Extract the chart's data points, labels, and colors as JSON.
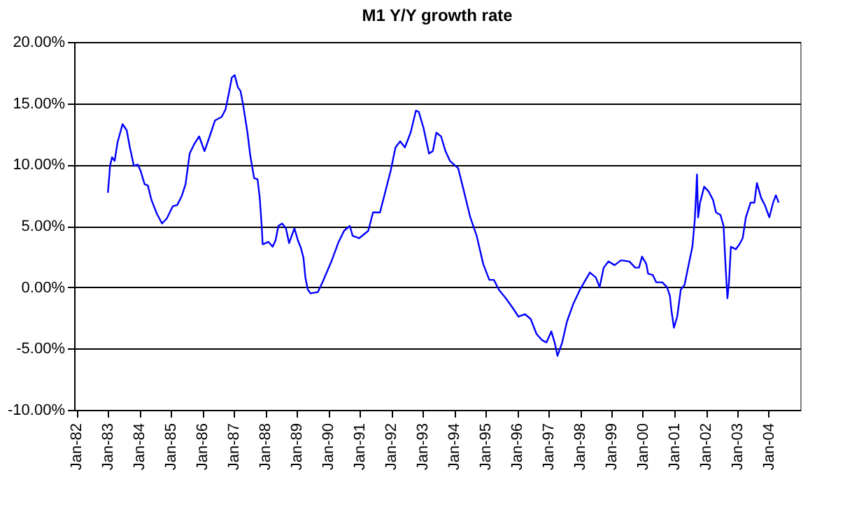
{
  "chart_data": {
    "type": "line",
    "title": "M1  Y/Y growth rate",
    "xlim": [
      "1981-12-05",
      "2005-01-01"
    ],
    "xticks": [
      {
        "value": "1982-01",
        "label": "Jan-82"
      },
      {
        "value": "1983-01",
        "label": "Jan-83"
      },
      {
        "value": "1984-01",
        "label": "Jan-84"
      },
      {
        "value": "1985-01",
        "label": "Jan-85"
      },
      {
        "value": "1986-01",
        "label": "Jan-86"
      },
      {
        "value": "1987-01",
        "label": "Jan-87"
      },
      {
        "value": "1988-01",
        "label": "Jan-88"
      },
      {
        "value": "1989-01",
        "label": "Jan-89"
      },
      {
        "value": "1990-01",
        "label": "Jan-90"
      },
      {
        "value": "1991-01",
        "label": "Jan-91"
      },
      {
        "value": "1992-01",
        "label": "Jan-92"
      },
      {
        "value": "1993-01",
        "label": "Jan-93"
      },
      {
        "value": "1994-01",
        "label": "Jan-94"
      },
      {
        "value": "1995-01",
        "label": "Jan-95"
      },
      {
        "value": "1996-01",
        "label": "Jan-96"
      },
      {
        "value": "1997-01",
        "label": "Jan-97"
      },
      {
        "value": "1998-01",
        "label": "Jan-98"
      },
      {
        "value": "1999-01",
        "label": "Jan-99"
      },
      {
        "value": "2000-01",
        "label": "Jan-00"
      },
      {
        "value": "2001-01",
        "label": "Jan-01"
      },
      {
        "value": "2002-01",
        "label": "Jan-02"
      },
      {
        "value": "2003-01",
        "label": "Jan-03"
      },
      {
        "value": "2004-01",
        "label": "Jan-04"
      }
    ],
    "ylim": [
      -10,
      20
    ],
    "yticks": [
      {
        "value": -10,
        "label": "-10.00%"
      },
      {
        "value": -5,
        "label": "-5.00%"
      },
      {
        "value": 0,
        "label": "0.00%"
      },
      {
        "value": 5,
        "label": "5.00%"
      },
      {
        "value": 10,
        "label": "10.00%"
      },
      {
        "value": 15,
        "label": "15.00%"
      },
      {
        "value": 20,
        "label": "20.00%"
      }
    ],
    "grid": "y",
    "legend": false,
    "marker": "none",
    "line_style": "solid",
    "series": [
      {
        "color": "#0000ff",
        "x": [
          "1983-01-01",
          "1983-01-26",
          "1983-02-18",
          "1983-03-20",
          "1983-04-22",
          "1983-06-20",
          "1983-08-07",
          "1983-09-13",
          "1983-10-29",
          "1983-12-13",
          "1984-01-15",
          "1984-03-02",
          "1984-04-08",
          "1984-05-21",
          "1984-07-22",
          "1984-09-20",
          "1984-11-14",
          "1985-01-22",
          "1985-03-16",
          "1985-05-10",
          "1985-06-20",
          "1985-08-07",
          "1985-10-01",
          "1985-11-25",
          "1986-01-26",
          "1986-03-27",
          "1986-05-28",
          "1986-08-14",
          "1986-09-27",
          "1986-11-07",
          "1986-12-09",
          "1987-01-11",
          "1987-02-18",
          "1987-03-20",
          "1987-04-19",
          "1987-06-09",
          "1987-07-12",
          "1987-08-25",
          "1987-10-04",
          "1987-10-29",
          "1987-11-21",
          "1987-12-02",
          "1988-02-07",
          "1988-03-27",
          "1988-04-29",
          "1988-06-02",
          "1988-07-15",
          "1988-08-28",
          "1988-10-04",
          "1988-11-03",
          "1988-12-05",
          "1989-01-15",
          "1989-02-18",
          "1989-03-20",
          "1989-04-11",
          "1989-05-10",
          "1989-06-09",
          "1989-09-02",
          "1989-10-26",
          "1990-02-07",
          "1990-04-26",
          "1990-07-04",
          "1990-09-09",
          "1990-10-11",
          "1990-12-27",
          "1991-04-11",
          "1991-06-05",
          "1991-08-25",
          "1991-10-19",
          "1991-12-27",
          "1992-02-21",
          "1992-04-15",
          "1992-06-09",
          "1992-08-14",
          "1992-10-15",
          "1992-11-17",
          "1993-01-11",
          "1993-03-16",
          "1993-04-29",
          "1993-06-09",
          "1993-08-03",
          "1993-09-23",
          "1993-11-14",
          "1994-02-18",
          "1994-04-19",
          "1994-07-08",
          "1994-09-20",
          "1994-12-05",
          "1995-02-14",
          "1995-04-08",
          "1995-06-05",
          "1995-08-25",
          "1995-11-14",
          "1996-01-19",
          "1996-04-04",
          "1996-06-09",
          "1996-08-14",
          "1996-10-15",
          "1996-12-09",
          "1997-02-03",
          "1997-03-13",
          "1997-04-15",
          "1997-06-09",
          "1997-08-03",
          "1997-10-19",
          "1998-01-01",
          "1998-04-26",
          "1998-07-04",
          "1998-08-17",
          "1998-10-04",
          "1998-11-28",
          "1999-02-07",
          "1999-04-22",
          "1999-07-29",
          "1999-10-04",
          "1999-11-17",
          "1999-12-23",
          "2000-02-10",
          "2000-03-02",
          "2000-04-26",
          "2000-06-05",
          "2000-08-14",
          "2000-10-08",
          "2000-11-10",
          "2000-11-28",
          "2000-12-27",
          "2001-02-03",
          "2001-03-16",
          "2001-04-29",
          "2001-06-09",
          "2001-07-29",
          "2001-08-25",
          "2001-09-13",
          "2001-09-20",
          "2001-10-04",
          "2001-10-26",
          "2001-12-13",
          "2002-02-03",
          "2002-03-27",
          "2002-04-29",
          "2002-06-20",
          "2002-07-26",
          "2002-08-17",
          "2002-09-09",
          "2002-09-27",
          "2002-10-19",
          "2002-12-16",
          "2003-01-26",
          "2003-03-05",
          "2003-04-11",
          "2003-06-05",
          "2003-07-19",
          "2003-08-17",
          "2003-10-04",
          "2003-11-17",
          "2004-01-08",
          "2004-02-21",
          "2004-03-24",
          "2004-04-26"
        ],
        "values": [
          7.7,
          9.9,
          10.6,
          10.3,
          11.8,
          13.3,
          12.8,
          11.4,
          9.9,
          10.0,
          9.5,
          8.4,
          8.3,
          7.1,
          6.0,
          5.2,
          5.6,
          6.6,
          6.7,
          7.5,
          8.4,
          10.9,
          11.7,
          12.3,
          11.1,
          12.3,
          13.6,
          13.9,
          14.5,
          15.9,
          17.1,
          17.3,
          16.3,
          16.0,
          14.9,
          12.6,
          10.7,
          8.9,
          8.8,
          7.3,
          5.0,
          3.5,
          3.7,
          3.3,
          3.8,
          5.0,
          5.2,
          4.8,
          3.6,
          4.2,
          4.8,
          3.8,
          3.2,
          2.4,
          0.8,
          -0.2,
          -0.5,
          -0.4,
          0.4,
          2.1,
          3.6,
          4.6,
          5.0,
          4.2,
          4.0,
          4.6,
          6.1,
          6.1,
          7.6,
          9.5,
          11.4,
          11.9,
          11.4,
          12.6,
          14.4,
          14.3,
          13.0,
          10.9,
          11.1,
          12.6,
          12.3,
          11.1,
          10.3,
          9.7,
          8.0,
          5.7,
          4.2,
          1.9,
          0.6,
          0.6,
          -0.2,
          -0.9,
          -1.7,
          -2.4,
          -2.2,
          -2.6,
          -3.8,
          -4.3,
          -4.5,
          -3.6,
          -4.5,
          -5.6,
          -4.5,
          -2.8,
          -1.3,
          -0.2,
          1.2,
          0.8,
          0.0,
          1.6,
          2.1,
          1.8,
          2.2,
          2.1,
          1.6,
          1.6,
          2.5,
          1.9,
          1.1,
          1.0,
          0.4,
          0.4,
          0.0,
          -0.7,
          -1.9,
          -3.3,
          -2.4,
          -0.2,
          0.2,
          1.6,
          3.3,
          5.4,
          8.0,
          9.2,
          5.7,
          6.9,
          8.2,
          7.8,
          7.1,
          6.1,
          5.9,
          5.0,
          1.9,
          -0.9,
          0.4,
          3.3,
          3.1,
          3.5,
          4.0,
          5.7,
          6.9,
          6.9,
          8.5,
          7.3,
          6.7,
          5.7,
          6.9,
          7.5,
          6.9
        ]
      }
    ]
  }
}
